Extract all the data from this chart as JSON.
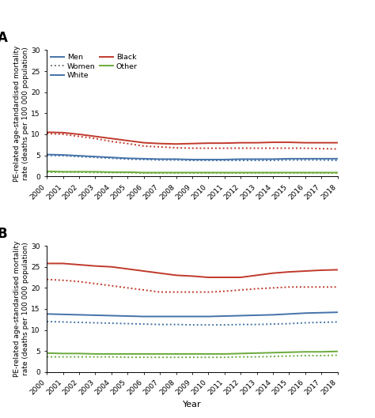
{
  "years": [
    2000,
    2001,
    2002,
    2003,
    2004,
    2005,
    2006,
    2007,
    2008,
    2009,
    2010,
    2011,
    2012,
    2013,
    2014,
    2015,
    2016,
    2017,
    2018
  ],
  "panel_A": {
    "title": "A",
    "ylim": [
      0,
      30
    ],
    "yticks": [
      0,
      5,
      10,
      15,
      20,
      25,
      30
    ],
    "series": {
      "black_men": [
        10.5,
        10.4,
        10.0,
        9.5,
        9.0,
        8.5,
        8.0,
        7.8,
        7.7,
        7.8,
        7.9,
        7.9,
        8.0,
        8.0,
        8.1,
        8.1,
        8.0,
        8.0,
        8.0
      ],
      "black_women": [
        10.2,
        10.0,
        9.5,
        9.0,
        8.3,
        7.8,
        7.2,
        7.0,
        6.8,
        6.7,
        6.7,
        6.7,
        6.7,
        6.7,
        6.7,
        6.7,
        6.7,
        6.6,
        6.5
      ],
      "white_men": [
        5.2,
        5.1,
        4.9,
        4.7,
        4.5,
        4.3,
        4.2,
        4.1,
        4.1,
        4.0,
        4.0,
        4.0,
        4.1,
        4.1,
        4.1,
        4.2,
        4.2,
        4.2,
        4.2
      ],
      "white_women": [
        5.0,
        4.9,
        4.7,
        4.5,
        4.3,
        4.1,
        4.0,
        3.9,
        3.9,
        3.8,
        3.8,
        3.8,
        3.8,
        3.8,
        3.8,
        3.9,
        3.9,
        3.9,
        3.8
      ],
      "other_men": [
        1.2,
        1.1,
        1.1,
        1.1,
        1.0,
        1.0,
        0.9,
        0.9,
        0.9,
        0.9,
        0.9,
        0.9,
        0.9,
        0.9,
        0.9,
        0.9,
        0.9,
        0.9,
        0.9
      ],
      "other_women": [
        1.0,
        1.0,
        1.0,
        0.9,
        0.9,
        0.9,
        0.8,
        0.8,
        0.8,
        0.8,
        0.8,
        0.8,
        0.8,
        0.8,
        0.8,
        0.8,
        0.8,
        0.8,
        0.8
      ]
    }
  },
  "panel_B": {
    "title": "B",
    "ylim": [
      0,
      30
    ],
    "yticks": [
      0,
      5,
      10,
      15,
      20,
      25,
      30
    ],
    "series": {
      "black_men": [
        25.8,
        25.8,
        25.5,
        25.2,
        25.0,
        24.5,
        24.0,
        23.5,
        23.0,
        22.8,
        22.5,
        22.5,
        22.5,
        23.0,
        23.5,
        23.8,
        24.0,
        24.2,
        24.3
      ],
      "black_women": [
        22.0,
        21.8,
        21.5,
        21.0,
        20.5,
        20.0,
        19.5,
        19.0,
        19.0,
        19.0,
        19.0,
        19.2,
        19.5,
        19.8,
        20.0,
        20.2,
        20.2,
        20.2,
        20.2
      ],
      "white_men": [
        13.8,
        13.7,
        13.6,
        13.5,
        13.4,
        13.3,
        13.2,
        13.2,
        13.2,
        13.2,
        13.2,
        13.3,
        13.4,
        13.5,
        13.6,
        13.8,
        14.0,
        14.1,
        14.2
      ],
      "white_women": [
        12.0,
        11.9,
        11.8,
        11.7,
        11.6,
        11.5,
        11.4,
        11.3,
        11.3,
        11.2,
        11.2,
        11.2,
        11.3,
        11.3,
        11.4,
        11.5,
        11.7,
        11.8,
        11.9
      ],
      "other_men": [
        4.5,
        4.4,
        4.4,
        4.3,
        4.3,
        4.3,
        4.3,
        4.3,
        4.3,
        4.3,
        4.3,
        4.3,
        4.4,
        4.5,
        4.6,
        4.7,
        4.8,
        4.8,
        4.9
      ],
      "other_women": [
        3.6,
        3.6,
        3.6,
        3.6,
        3.6,
        3.5,
        3.5,
        3.5,
        3.5,
        3.5,
        3.5,
        3.5,
        3.6,
        3.6,
        3.7,
        3.8,
        3.9,
        3.9,
        4.0
      ]
    }
  },
  "colors": {
    "blue": "#4472a8",
    "red": "#c0392b",
    "green": "#6aaa3a",
    "dark_gray": "#333333"
  },
  "legend": {
    "men_label": "Men",
    "women_label": "Women",
    "white_label": "White",
    "black_label": "Black",
    "other_label": "Other"
  },
  "ylabel": "PE-related age-standardised mortality\nrate (deaths per 100 000 population)",
  "xlabel": "Year",
  "line_width": 1.4
}
